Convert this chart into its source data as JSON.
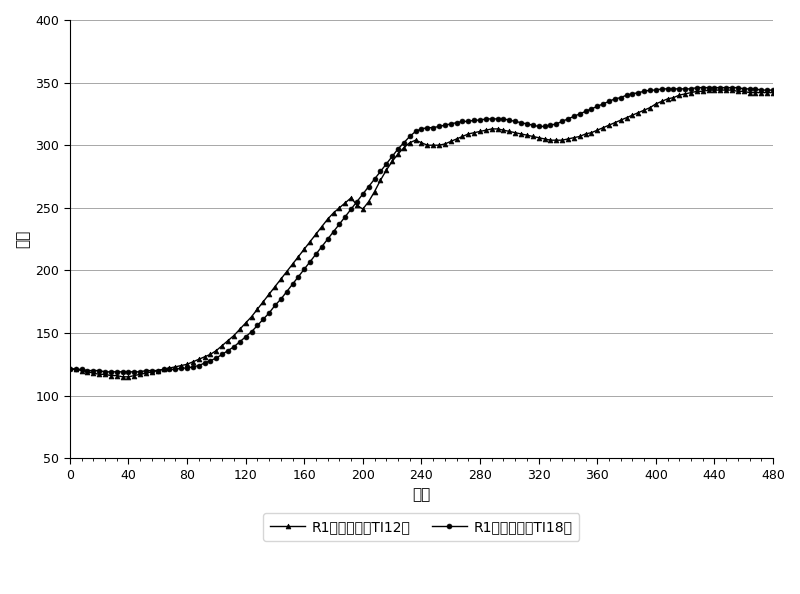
{
  "xlabel": "时间",
  "ylabel": "温度",
  "xlim": [
    0,
    480
  ],
  "ylim": [
    50,
    400
  ],
  "xticks": [
    0,
    40,
    80,
    120,
    160,
    200,
    240,
    280,
    320,
    360,
    400,
    440,
    480
  ],
  "yticks": [
    50,
    100,
    150,
    200,
    250,
    300,
    350,
    400
  ],
  "legend1": "R1入口温度（TI12）",
  "legend2": "R1出口温度（TI18）",
  "background_color": "#ffffff",
  "grid_color": "#999999",
  "line_color": "#000000",
  "ti12_x": [
    0,
    4,
    8,
    12,
    16,
    20,
    24,
    28,
    32,
    36,
    40,
    44,
    48,
    52,
    56,
    60,
    64,
    68,
    72,
    76,
    80,
    84,
    88,
    92,
    96,
    100,
    104,
    108,
    112,
    116,
    120,
    124,
    128,
    132,
    136,
    140,
    144,
    148,
    152,
    156,
    160,
    164,
    168,
    172,
    176,
    180,
    184,
    188,
    192,
    196,
    200,
    204,
    208,
    212,
    216,
    220,
    224,
    228,
    232,
    236,
    240,
    244,
    248,
    252,
    256,
    260,
    264,
    268,
    272,
    276,
    280,
    284,
    288,
    292,
    296,
    300,
    304,
    308,
    312,
    316,
    320,
    324,
    328,
    332,
    336,
    340,
    344,
    348,
    352,
    356,
    360,
    364,
    368,
    372,
    376,
    380,
    384,
    388,
    392,
    396,
    400,
    404,
    408,
    412,
    416,
    420,
    424,
    428,
    432,
    436,
    440,
    444,
    448,
    452,
    456,
    460,
    464,
    468,
    472,
    476,
    480
  ],
  "ti12_y": [
    122,
    121,
    120,
    119,
    118,
    117,
    117,
    116,
    116,
    115,
    115,
    116,
    117,
    118,
    119,
    120,
    121,
    122,
    123,
    124,
    125,
    127,
    129,
    131,
    133,
    136,
    140,
    144,
    148,
    153,
    158,
    163,
    169,
    175,
    181,
    187,
    193,
    199,
    205,
    211,
    217,
    223,
    229,
    235,
    241,
    246,
    250,
    254,
    258,
    252,
    249,
    255,
    263,
    272,
    280,
    287,
    293,
    298,
    302,
    304,
    302,
    300,
    300,
    300,
    301,
    303,
    305,
    307,
    309,
    310,
    311,
    312,
    313,
    313,
    312,
    311,
    310,
    309,
    308,
    307,
    306,
    305,
    304,
    304,
    304,
    305,
    306,
    307,
    309,
    310,
    312,
    314,
    316,
    318,
    320,
    322,
    324,
    326,
    328,
    330,
    333,
    335,
    337,
    338,
    340,
    341,
    342,
    343,
    343,
    344,
    344,
    344,
    344,
    344,
    343,
    343,
    342,
    342,
    342,
    342,
    342
  ],
  "ti18_x": [
    0,
    4,
    8,
    12,
    16,
    20,
    24,
    28,
    32,
    36,
    40,
    44,
    48,
    52,
    56,
    60,
    64,
    68,
    72,
    76,
    80,
    84,
    88,
    92,
    96,
    100,
    104,
    108,
    112,
    116,
    120,
    124,
    128,
    132,
    136,
    140,
    144,
    148,
    152,
    156,
    160,
    164,
    168,
    172,
    176,
    180,
    184,
    188,
    192,
    196,
    200,
    204,
    208,
    212,
    216,
    220,
    224,
    228,
    232,
    236,
    240,
    244,
    248,
    252,
    256,
    260,
    264,
    268,
    272,
    276,
    280,
    284,
    288,
    292,
    296,
    300,
    304,
    308,
    312,
    316,
    320,
    324,
    328,
    332,
    336,
    340,
    344,
    348,
    352,
    356,
    360,
    364,
    368,
    372,
    376,
    380,
    384,
    388,
    392,
    396,
    400,
    404,
    408,
    412,
    416,
    420,
    424,
    428,
    432,
    436,
    440,
    444,
    448,
    452,
    456,
    460,
    464,
    468,
    472,
    476,
    480
  ],
  "ti18_y": [
    121,
    121,
    121,
    120,
    120,
    120,
    119,
    119,
    119,
    119,
    119,
    119,
    119,
    120,
    120,
    120,
    121,
    121,
    121,
    122,
    122,
    123,
    124,
    126,
    128,
    130,
    133,
    136,
    139,
    143,
    147,
    151,
    156,
    161,
    166,
    172,
    177,
    183,
    189,
    195,
    201,
    207,
    213,
    219,
    225,
    231,
    237,
    243,
    249,
    255,
    261,
    267,
    273,
    279,
    285,
    291,
    297,
    302,
    307,
    311,
    313,
    314,
    314,
    315,
    316,
    317,
    318,
    319,
    319,
    320,
    320,
    321,
    321,
    321,
    321,
    320,
    319,
    318,
    317,
    316,
    315,
    315,
    316,
    317,
    319,
    321,
    323,
    325,
    327,
    329,
    331,
    333,
    335,
    337,
    338,
    340,
    341,
    342,
    343,
    344,
    344,
    345,
    345,
    345,
    345,
    345,
    345,
    346,
    346,
    346,
    346,
    346,
    346,
    346,
    346,
    345,
    345,
    345,
    344,
    344,
    344
  ]
}
